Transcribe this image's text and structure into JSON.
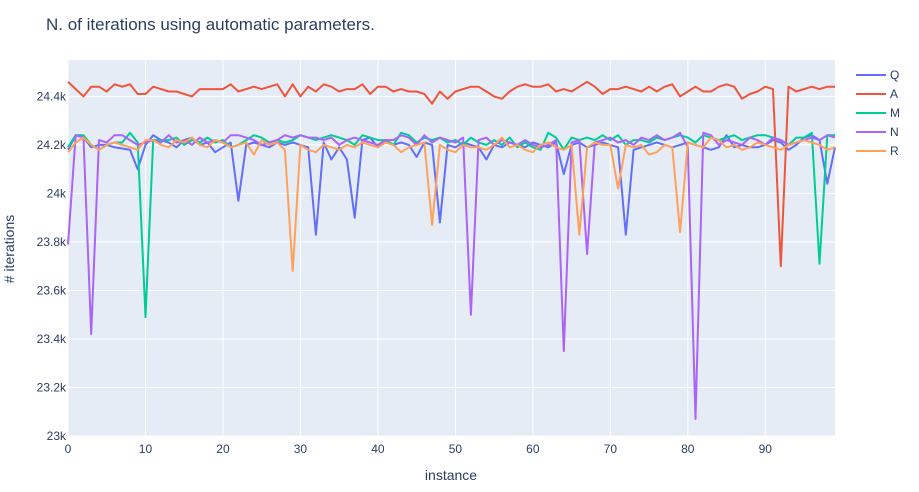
{
  "chart_data": {
    "type": "line",
    "title": "N. of iterations using automatic parameters.",
    "xlabel": "instance",
    "ylabel": "# iterations",
    "xlim": [
      0,
      99
    ],
    "ylim": [
      23000,
      24550
    ],
    "x_ticks": [
      0,
      10,
      20,
      30,
      40,
      50,
      60,
      70,
      80,
      90
    ],
    "x_tick_labels": [
      "0",
      "10",
      "20",
      "30",
      "40",
      "50",
      "60",
      "70",
      "80",
      "90"
    ],
    "y_ticks": [
      23000,
      23200,
      23400,
      23600,
      23800,
      24000,
      24200,
      24400
    ],
    "y_tick_labels": [
      "23k",
      "23.2k",
      "23.4k",
      "23.6k",
      "23.8k",
      "24k",
      "24.2k",
      "24.4k"
    ],
    "legend_position": "top-right",
    "grid": true,
    "series": [
      {
        "name": "Q",
        "color": "#636efa",
        "values": [
          24180,
          24240,
          24230,
          24190,
          24200,
          24200,
          24190,
          24185,
          24180,
          24100,
          24200,
          24240,
          24220,
          24210,
          24190,
          24220,
          24230,
          24200,
          24210,
          24170,
          24190,
          24210,
          23970,
          24200,
          24210,
          24200,
          24190,
          24210,
          24200,
          24210,
          24200,
          24190,
          23830,
          24210,
          24140,
          24190,
          24140,
          23900,
          24220,
          24230,
          24190,
          24220,
          24200,
          24210,
          24200,
          24150,
          24210,
          24200,
          23880,
          24200,
          24190,
          24210,
          24200,
          24190,
          24140,
          24200,
          24190,
          24210,
          24200,
          24190,
          24210,
          24200,
          24190,
          24210,
          24080,
          24200,
          24210,
          24190,
          24200,
          24210,
          24200,
          24190,
          23830,
          24180,
          24190,
          24200,
          24210,
          24200,
          24190,
          24200,
          24210,
          24200,
          24190,
          24180,
          24190,
          24240,
          24190,
          24200,
          24190,
          24190,
          24200,
          24220,
          24210,
          24180,
          24200,
          24230,
          24240,
          24220,
          24040,
          24190
        ]
      },
      {
        "name": "A",
        "color": "#ef553b",
        "values": [
          24460,
          24430,
          24400,
          24440,
          24440,
          24420,
          24450,
          24440,
          24450,
          24410,
          24410,
          24440,
          24430,
          24420,
          24420,
          24410,
          24400,
          24430,
          24430,
          24430,
          24430,
          24450,
          24420,
          24430,
          24440,
          24430,
          24440,
          24450,
          24400,
          24450,
          24400,
          24440,
          24420,
          24450,
          24440,
          24420,
          24430,
          24430,
          24450,
          24410,
          24440,
          24440,
          24420,
          24430,
          24420,
          24420,
          24410,
          24370,
          24420,
          24390,
          24420,
          24430,
          24440,
          24440,
          24420,
          24400,
          24390,
          24420,
          24440,
          24450,
          24440,
          24440,
          24450,
          24420,
          24430,
          24420,
          24440,
          24460,
          24440,
          24410,
          24430,
          24430,
          24440,
          24430,
          24420,
          24440,
          24420,
          24440,
          24450,
          24400,
          24420,
          24440,
          24420,
          24420,
          24440,
          24450,
          24440,
          24390,
          24410,
          24420,
          24440,
          24430,
          23700,
          24440,
          24420,
          24430,
          24440,
          24430,
          24440,
          24440
        ]
      },
      {
        "name": "M",
        "color": "#00cc96",
        "values": [
          24190,
          24240,
          24240,
          24200,
          24180,
          24200,
          24210,
          24210,
          24250,
          24210,
          23490,
          24220,
          24220,
          24220,
          24230,
          24200,
          24220,
          24210,
          24230,
          24210,
          24220,
          24190,
          24200,
          24220,
          24240,
          24230,
          24210,
          24220,
          24210,
          24220,
          24240,
          24230,
          24220,
          24230,
          24240,
          24230,
          24220,
          24200,
          24240,
          24230,
          24220,
          24220,
          24200,
          24250,
          24240,
          24210,
          24230,
          24220,
          24230,
          24210,
          24220,
          24200,
          24230,
          24210,
          24200,
          24220,
          24200,
          24230,
          24190,
          24210,
          24190,
          24180,
          24250,
          24230,
          24180,
          24230,
          24220,
          24230,
          24220,
          24240,
          24220,
          24240,
          24200,
          24220,
          24220,
          24210,
          24230,
          24220,
          24230,
          24240,
          24230,
          24210,
          24240,
          24230,
          24220,
          24230,
          24240,
          24220,
          24230,
          24240,
          24240,
          24230,
          24220,
          24200,
          24230,
          24230,
          24250,
          23710,
          24240,
          24240
        ]
      },
      {
        "name": "N",
        "color": "#ab63fa",
        "values": [
          23790,
          24240,
          24230,
          23420,
          24220,
          24210,
          24240,
          24240,
          24220,
          24200,
          24210,
          24220,
          24210,
          24240,
          24210,
          24220,
          24200,
          24230,
          24210,
          24220,
          24210,
          24240,
          24240,
          24230,
          24220,
          24200,
          24210,
          24220,
          24240,
          24230,
          24240,
          24230,
          24230,
          24220,
          24230,
          24200,
          24220,
          24230,
          24220,
          24210,
          24200,
          24220,
          24220,
          24240,
          24230,
          24200,
          24240,
          24210,
          24230,
          24220,
          24210,
          24230,
          23500,
          24220,
          24230,
          24200,
          24220,
          24210,
          24200,
          24220,
          24200,
          24190,
          24200,
          24220,
          23350,
          24210,
          24220,
          23750,
          24210,
          24220,
          24230,
          24210,
          24220,
          24200,
          24230,
          24220,
          24240,
          24220,
          24230,
          24250,
          24190,
          23070,
          24250,
          24240,
          24200,
          24220,
          24210,
          24200,
          24230,
          24220,
          24200,
          24230,
          24220,
          24200,
          24210,
          24220,
          24230,
          24220,
          24240,
          24230
        ]
      },
      {
        "name": "R",
        "color": "#ffa15a",
        "values": [
          24170,
          24210,
          24230,
          24200,
          24180,
          24200,
          24210,
          24200,
          24190,
          24180,
          24220,
          24220,
          24200,
          24190,
          24220,
          24210,
          24230,
          24200,
          24190,
          24220,
          24210,
          24190,
          24200,
          24210,
          24160,
          24220,
          24200,
          24210,
          24180,
          23680,
          24200,
          24180,
          24170,
          24200,
          24190,
          24180,
          24200,
          24190,
          24210,
          24200,
          24190,
          24210,
          24200,
          24170,
          24190,
          24200,
          24210,
          23870,
          24200,
          24180,
          24170,
          24200,
          24190,
          24190,
          24180,
          24200,
          24230,
          24190,
          24200,
          24180,
          24170,
          24200,
          24210,
          24190,
          24180,
          24200,
          23830,
          24190,
          24210,
          24200,
          24200,
          24020,
          24200,
          24190,
          24200,
          24160,
          24170,
          24200,
          24190,
          23840,
          24210,
          24200,
          24190,
          24230,
          24220,
          24190,
          24200,
          24180,
          24190,
          24210,
          24200,
          24190,
          24180,
          24200,
          24210,
          24220,
          24210,
          24200,
          24180,
          24190
        ]
      }
    ]
  }
}
